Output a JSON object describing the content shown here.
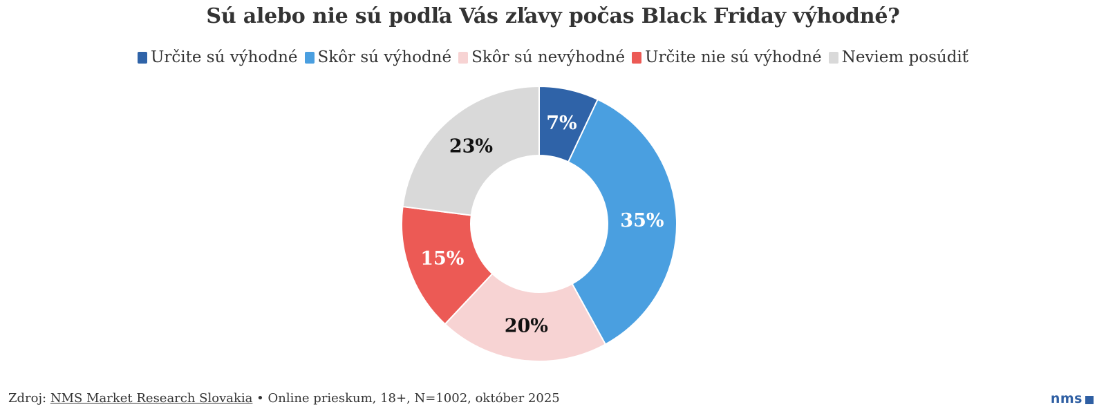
{
  "chart_data": {
    "type": "pie",
    "title": "Sú alebo nie sú podľa Vás zľavy počas Black Friday výhodné?",
    "categories": [
      "Určite sú výhodné",
      "Skôr sú výhodné",
      "Skôr sú nevýhodné",
      "Určite nie sú výhodné",
      "Neviem posúdiť"
    ],
    "values": [
      7,
      35,
      20,
      15,
      23
    ],
    "labels": [
      "7%",
      "35%",
      "20%",
      "15%",
      "23%"
    ],
    "colors": [
      "#2f63a8",
      "#4a9fe0",
      "#f7d3d3",
      "#ec5a55",
      "#d9d9d9"
    ],
    "label_colors": [
      "#ffffff",
      "#ffffff",
      "#111111",
      "#ffffff",
      "#111111"
    ],
    "donut": true,
    "legend_position": "top"
  },
  "footer": {
    "prefix": "Zdroj: ",
    "source": "NMS Market Research Slovakia",
    "details": " • Online prieskum, 18+, N=1002, október 2025"
  },
  "logo": {
    "text": "nms"
  }
}
